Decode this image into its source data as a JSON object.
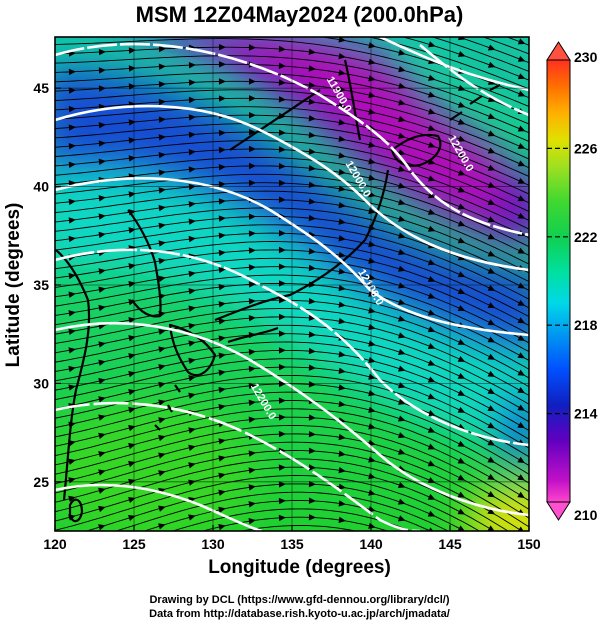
{
  "figure": {
    "title": "MSM 12Z04May2024 (200.0hPa)",
    "xlabel": "Longitude (degrees)",
    "ylabel": "Latitude  (degrees)",
    "credit_line1": "Drawing by DCL (https://www.gfd-dennou.org/library/dcl/)",
    "credit_line2": "Data from http://database.rish.kyoto-u.ac.jp/arch/jmadata/"
  },
  "chart_data": {
    "type": "heatmap",
    "description_fields": "temperature shading with geopotential height contours and wind streamlines",
    "xlim": [
      120,
      150
    ],
    "ylim": [
      22.5,
      47.6
    ],
    "x_ticks": [
      "120",
      "125",
      "130",
      "135",
      "140",
      "145",
      "150"
    ],
    "y_ticks": [
      "25",
      "30",
      "35",
      "40",
      "45"
    ],
    "grid": true,
    "colorbar": {
      "min": 210,
      "max": 230,
      "ticks": [
        "210",
        "214",
        "218",
        "222",
        "226",
        "230"
      ],
      "placement": "right",
      "colors": [
        "#ff44cc",
        "#a000c8",
        "#1020c0",
        "#0050ff",
        "#00d8e8",
        "#10d060",
        "#30d830",
        "#a0e020",
        "#e0e000",
        "#ffb000",
        "#ff7000",
        "#ff3020"
      ]
    },
    "contours": [
      {
        "label": "11900.0",
        "label_lon": 137.8,
        "label_lat": 44.6
      },
      {
        "label": "12000.0",
        "label_lon": 139.0,
        "label_lat": 40.3
      },
      {
        "label": "12100.0",
        "label_lon": 139.8,
        "label_lat": 34.8
      },
      {
        "label": "12200.0",
        "label_lon": 133.0,
        "label_lat": 29.0
      },
      {
        "label": "12200.0",
        "label_lon": 145.5,
        "label_lat": 41.6
      }
    ]
  }
}
